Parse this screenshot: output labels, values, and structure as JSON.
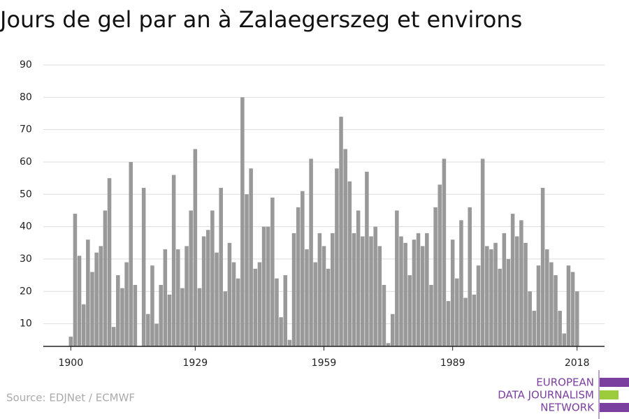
{
  "chart_data": {
    "type": "bar",
    "title": "Jours de gel par an à Zalaegerszeg et environs",
    "source": "Source: EDJNet / ECMWF",
    "logo": [
      "EUROPEAN",
      "DATA JOURNALISM",
      "NETWORK"
    ],
    "x": [
      1900,
      1901,
      1902,
      1903,
      1904,
      1905,
      1906,
      1907,
      1908,
      1909,
      1910,
      1911,
      1912,
      1913,
      1914,
      1915,
      1916,
      1917,
      1918,
      1919,
      1920,
      1921,
      1922,
      1923,
      1924,
      1925,
      1926,
      1927,
      1928,
      1929,
      1930,
      1931,
      1932,
      1933,
      1934,
      1935,
      1936,
      1937,
      1938,
      1939,
      1940,
      1941,
      1942,
      1943,
      1944,
      1945,
      1946,
      1947,
      1948,
      1949,
      1950,
      1951,
      1952,
      1953,
      1954,
      1955,
      1956,
      1957,
      1958,
      1959,
      1960,
      1961,
      1962,
      1963,
      1964,
      1965,
      1966,
      1967,
      1968,
      1969,
      1970,
      1971,
      1972,
      1973,
      1974,
      1975,
      1976,
      1977,
      1978,
      1979,
      1980,
      1981,
      1982,
      1983,
      1984,
      1985,
      1986,
      1987,
      1988,
      1989,
      1990,
      1991,
      1992,
      1993,
      1994,
      1995,
      1996,
      1997,
      1998,
      1999,
      2000,
      2001,
      2002,
      2003,
      2004,
      2005,
      2006,
      2007,
      2008,
      2009,
      2010,
      2011,
      2012,
      2013,
      2014,
      2015,
      2016,
      2017,
      2018
    ],
    "values": [
      6,
      44,
      31,
      16,
      36,
      26,
      32,
      34,
      45,
      55,
      9,
      25,
      21,
      29,
      60,
      22,
      3,
      52,
      13,
      28,
      10,
      22,
      33,
      19,
      56,
      33,
      21,
      34,
      45,
      64,
      21,
      37,
      39,
      45,
      32,
      52,
      20,
      35,
      29,
      24,
      80,
      50,
      58,
      27,
      29,
      40,
      40,
      49,
      24,
      12,
      25,
      5,
      38,
      46,
      51,
      33,
      61,
      29,
      38,
      34,
      27,
      38,
      58,
      74,
      64,
      54,
      38,
      45,
      37,
      57,
      37,
      40,
      34,
      22,
      4,
      13,
      45,
      37,
      35,
      25,
      36,
      38,
      34,
      38,
      22,
      46,
      53,
      61,
      17,
      36,
      24,
      42,
      18,
      46,
      19,
      28,
      61,
      34,
      33,
      35,
      27,
      38,
      30,
      44,
      37,
      42,
      35,
      20,
      14,
      28,
      52,
      33,
      29,
      25,
      14,
      7,
      28,
      26,
      20
    ],
    "color": "#999999",
    "xlim": [
      1893.6,
      2024.4
    ],
    "xticks": [
      1900,
      1929,
      1959,
      1989,
      2018
    ],
    "ylim": [
      3,
      90
    ],
    "yticks": [
      10,
      20,
      30,
      40,
      50,
      60,
      70,
      80,
      90
    ],
    "grid": true
  }
}
